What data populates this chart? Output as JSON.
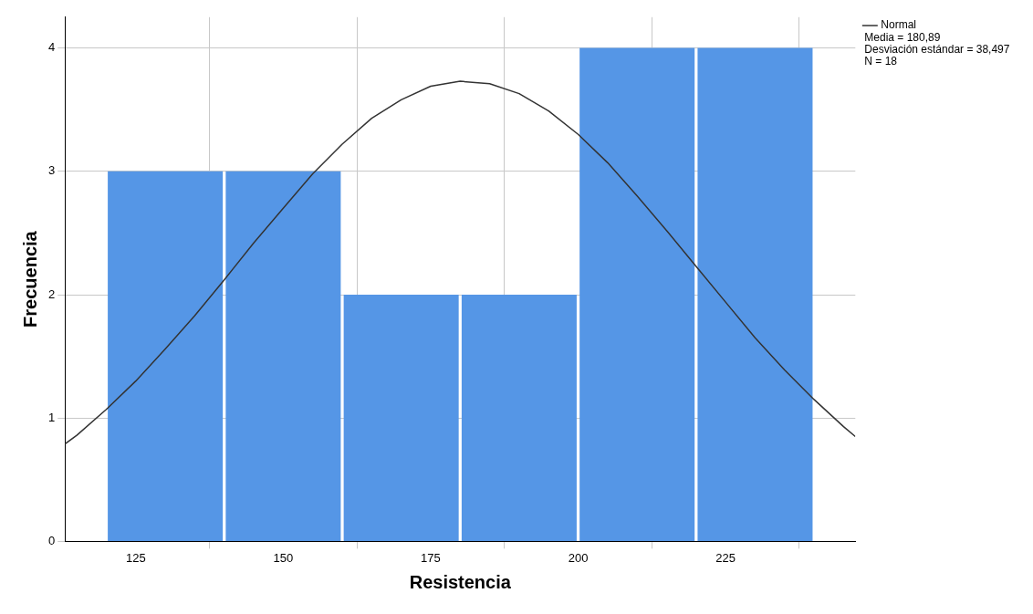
{
  "chart_data": {
    "type": "histogram",
    "xlabel": "Resistencia",
    "ylabel": "Frecuencia",
    "bins": [
      120,
      140,
      160,
      180,
      200,
      220,
      240
    ],
    "values": [
      3,
      3,
      2,
      2,
      4,
      4
    ],
    "color": "#5596e6",
    "xlim": [
      113,
      247
    ],
    "xticks": [
      125,
      150,
      175,
      200,
      225
    ],
    "ylim": [
      0,
      4.25
    ],
    "yticks": [
      0,
      1,
      2,
      3,
      4
    ],
    "grid": true,
    "legend": "top right",
    "series": [
      {
        "name": "Normal",
        "type": "line",
        "color": "#333333",
        "marker": "none",
        "x": [
          113,
          115,
          120,
          125,
          130,
          135,
          140,
          145,
          150,
          155,
          160,
          165,
          170,
          175,
          180,
          185,
          190,
          195,
          200,
          205,
          210,
          215,
          220,
          225,
          230,
          235,
          240,
          245,
          247
        ],
        "values": [
          0.79,
          0.86,
          1.07,
          1.3,
          1.56,
          1.83,
          2.12,
          2.42,
          2.7,
          2.98,
          3.22,
          3.43,
          3.58,
          3.69,
          3.73,
          3.71,
          3.63,
          3.49,
          3.3,
          3.07,
          2.8,
          2.52,
          2.23,
          1.94,
          1.65,
          1.39,
          1.15,
          0.93,
          0.85
        ]
      }
    ],
    "annotations": [
      "Media = 180,89",
      "Desviación estándar = 38,497",
      "N = 18"
    ]
  }
}
